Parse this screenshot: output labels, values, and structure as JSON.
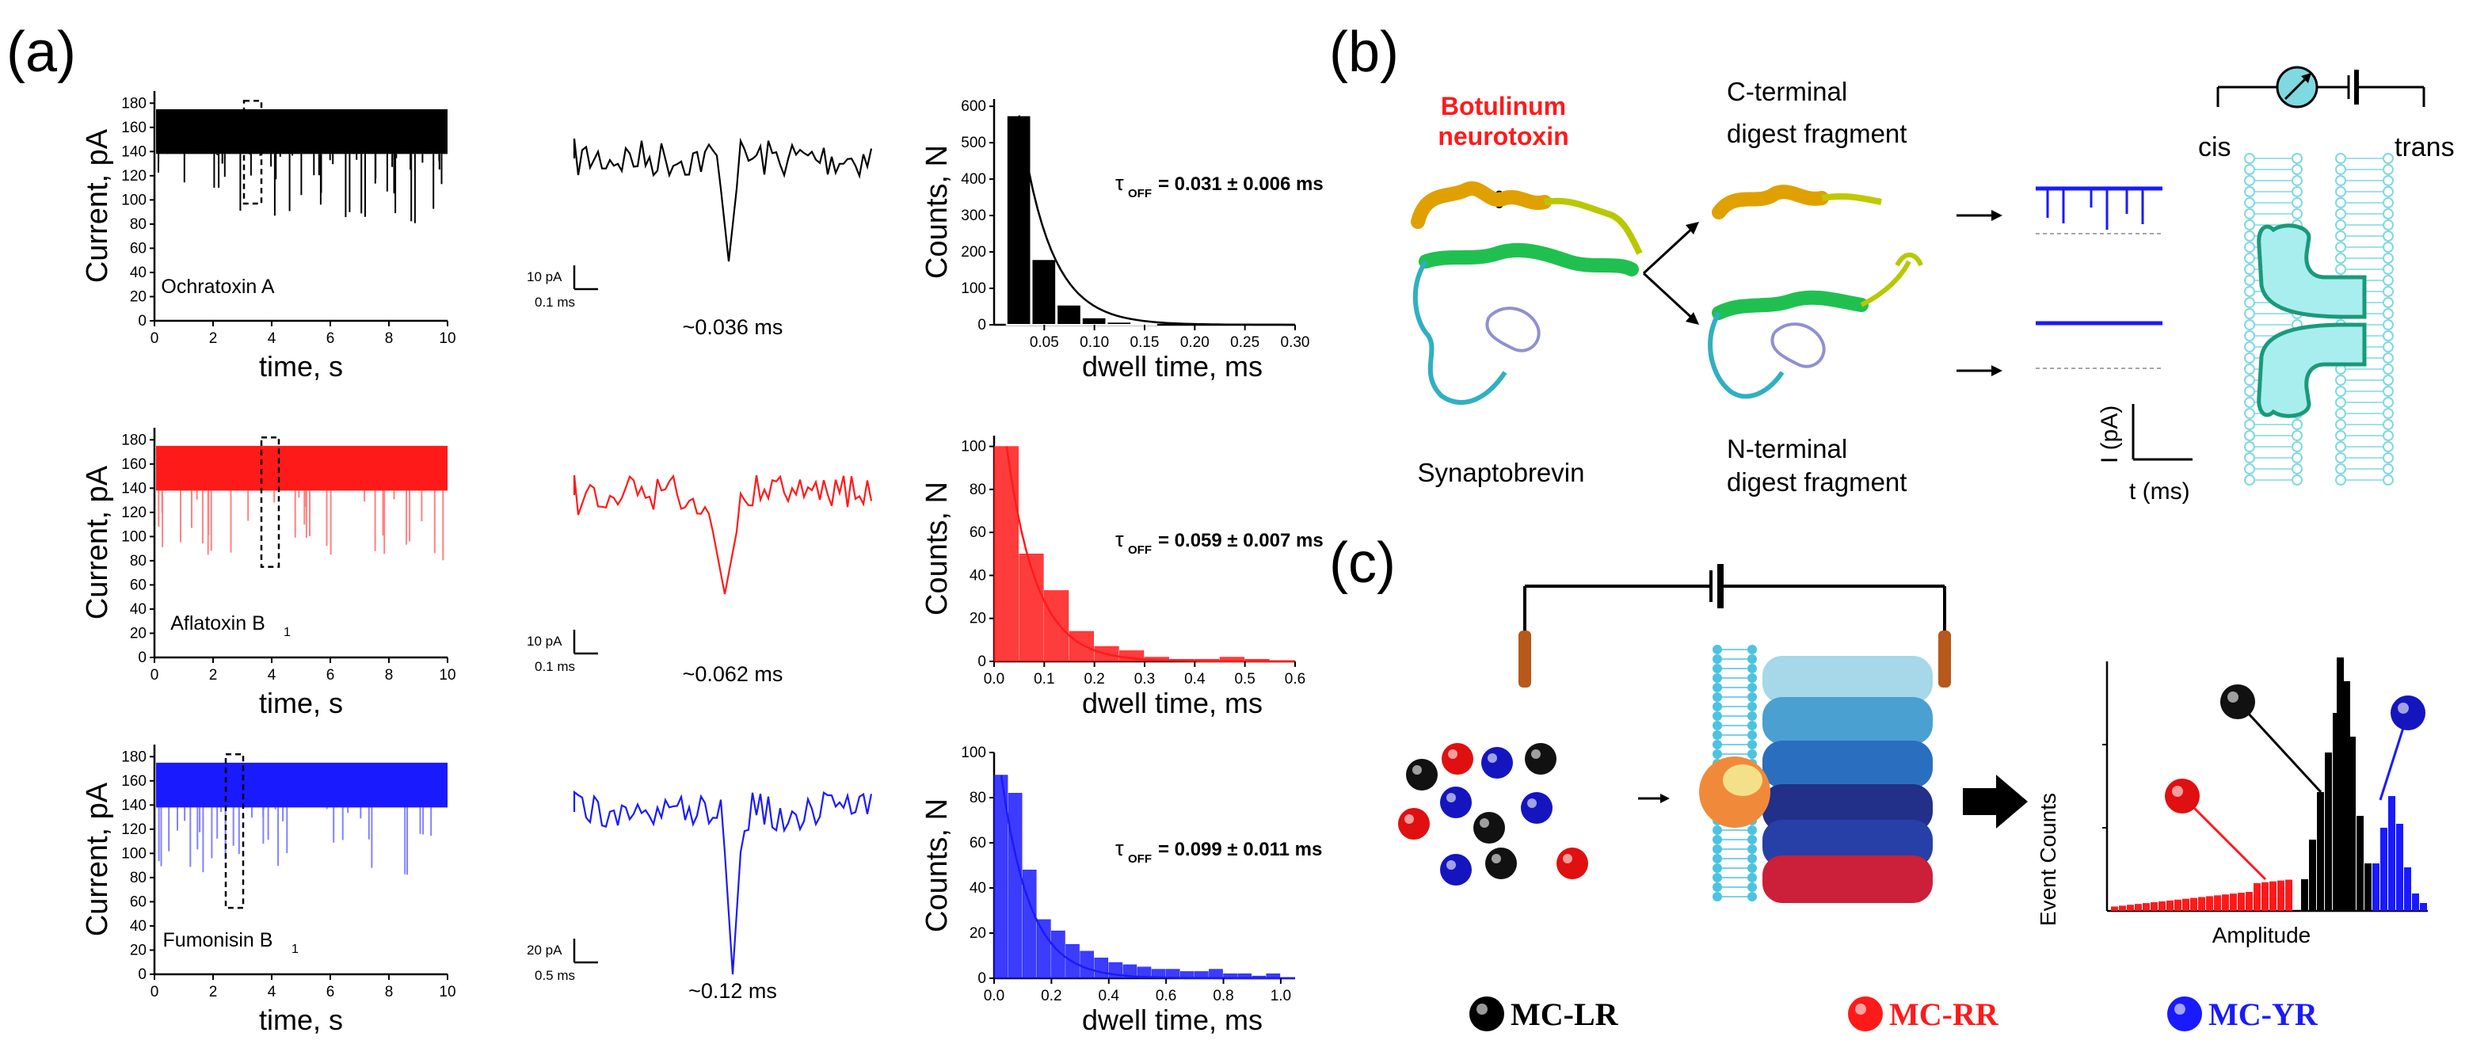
{
  "panel_labels": {
    "a": "(a)",
    "b": "(b)",
    "c": "(c)"
  },
  "colors": {
    "black": "#000000",
    "red": "#ff1a1a",
    "blue": "#1a1aff",
    "membrane": "#7fd9e0",
    "protein_fill": "#a8eeee"
  },
  "rows": [
    {
      "color": "#000000",
      "trace": {
        "ylabel": "Current, pA",
        "xlabel": "time, s",
        "analyte": "Ochratoxin A",
        "analyte_sub": "",
        "yticks": [
          "180",
          "160",
          "140",
          "120",
          "100",
          "80",
          "60",
          "40",
          "20",
          "0"
        ],
        "xticks": [
          "0",
          "2",
          "4",
          "6",
          "8",
          "10"
        ]
      },
      "event": {
        "scale_label": "10 pA",
        "time_label": "0.1 ms",
        "duration": "~0.036 ms"
      },
      "hist": {
        "ylabel": "Counts, N",
        "xlabel": "dwell time, ms",
        "tau": "= 0.031 ± 0.006 ms",
        "yticks": [
          "600",
          "500",
          "400",
          "300",
          "200",
          "100",
          "0"
        ],
        "xticks": [
          "0.05",
          "0.10",
          "0.15",
          "0.20",
          "0.25",
          "0.30"
        ]
      }
    },
    {
      "color": "#ff1a1a",
      "trace": {
        "ylabel": "Current, pA",
        "xlabel": "time, s",
        "analyte": "Aflatoxin B",
        "analyte_sub": "1",
        "yticks": [
          "180",
          "160",
          "140",
          "120",
          "100",
          "80",
          "60",
          "40",
          "20",
          "0"
        ],
        "xticks": [
          "0",
          "2",
          "4",
          "6",
          "8",
          "10"
        ]
      },
      "event": {
        "scale_label": "10 pA",
        "time_label": "0.1 ms",
        "duration": "~0.062 ms"
      },
      "hist": {
        "ylabel": "Counts, N",
        "xlabel": "dwell time, ms",
        "tau": "= 0.059 ± 0.007 ms",
        "yticks": [
          "100",
          "80",
          "60",
          "40",
          "20",
          "0"
        ],
        "xticks": [
          "0.0",
          "0.1",
          "0.2",
          "0.3",
          "0.4",
          "0.5",
          "0.6"
        ]
      }
    },
    {
      "color": "#1a1aff",
      "trace": {
        "ylabel": "Current, pA",
        "xlabel": "time, s",
        "analyte": "Fumonisin B",
        "analyte_sub": "1",
        "yticks": [
          "180",
          "160",
          "140",
          "120",
          "100",
          "80",
          "60",
          "40",
          "20",
          "0"
        ],
        "xticks": [
          "0",
          "2",
          "4",
          "6",
          "8",
          "10"
        ]
      },
      "event": {
        "scale_label": "20 pA",
        "time_label": "0.5 ms",
        "duration": "~0.12 ms"
      },
      "hist": {
        "ylabel": "Counts, N",
        "xlabel": "dwell time, ms",
        "tau": "= 0.099 ± 0.011 ms",
        "yticks": [
          "100",
          "80",
          "60",
          "40",
          "20",
          "0"
        ],
        "xticks": [
          "0.0",
          "0.2",
          "0.4",
          "0.6",
          "0.8",
          "1.0"
        ]
      }
    }
  ],
  "tau_symbol": "τ",
  "tau_sub": "OFF",
  "panel_b": {
    "toxin_line1": "Botulinum",
    "toxin_line2": "neurotoxin",
    "scissors": "✂",
    "synaptobrevin": "Synaptobrevin",
    "c_frag_line1": "C-terminal",
    "c_frag_line2": "digest fragment",
    "n_frag_line1": "N-terminal",
    "n_frag_line2": "digest fragment",
    "cis": "cis",
    "trans": "trans",
    "ylabel": "I (pA)",
    "xlabel": "t (ms)"
  },
  "panel_c": {
    "hist_ylabel": "Event Counts",
    "hist_xlabel": "Amplitude",
    "legend": [
      {
        "label": "MC-LR",
        "color": "#000000"
      },
      {
        "label": "MC-RR",
        "color": "#ff1a1a"
      },
      {
        "label": "MC-YR",
        "color": "#1a1aff"
      }
    ]
  },
  "chart_data": [
    {
      "type": "bar",
      "title": "",
      "xlabel": "dwell time, ms",
      "ylabel": "Counts, N",
      "series_color": "#000000",
      "x": [
        0.025,
        0.05,
        0.075,
        0.1,
        0.125,
        0.15
      ],
      "values": [
        575,
        180,
        55,
        20,
        8,
        3
      ],
      "xlim": [
        0,
        0.3
      ],
      "ylim": [
        0,
        620
      ]
    },
    {
      "type": "bar",
      "title": "",
      "xlabel": "dwell time, ms",
      "ylabel": "Counts, N",
      "series_color": "#ff1a1a",
      "x": [
        0.025,
        0.075,
        0.125,
        0.175,
        0.225,
        0.275,
        0.325,
        0.375,
        0.425,
        0.475,
        0.525
      ],
      "values": [
        100,
        50,
        33,
        14,
        7,
        5,
        2,
        1,
        1,
        2,
        1
      ],
      "xlim": [
        0,
        0.6
      ],
      "ylim": [
        0,
        105
      ]
    },
    {
      "type": "bar",
      "title": "",
      "xlabel": "dwell time, ms",
      "ylabel": "Counts, N",
      "series_color": "#1a1aff",
      "x": [
        0.025,
        0.075,
        0.125,
        0.175,
        0.225,
        0.275,
        0.325,
        0.375,
        0.425,
        0.475,
        0.525,
        0.575,
        0.625,
        0.675,
        0.725,
        0.775,
        0.825,
        0.875,
        0.925,
        0.975
      ],
      "values": [
        90,
        82,
        48,
        26,
        21,
        15,
        12,
        9,
        7,
        6,
        5,
        4,
        4,
        3,
        3,
        4,
        2,
        2,
        1,
        2
      ],
      "xlim": [
        0,
        1.05
      ],
      "ylim": [
        0,
        100
      ]
    }
  ]
}
